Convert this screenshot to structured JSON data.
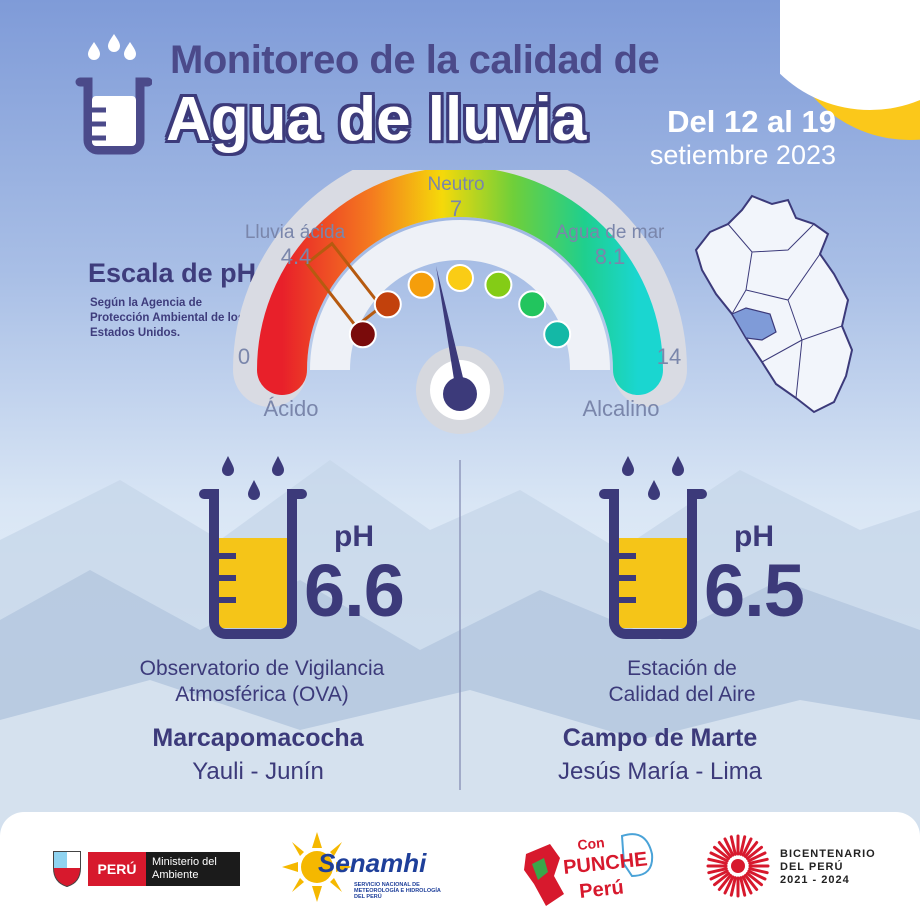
{
  "header": {
    "title_line1": "Monitoreo de la calidad de",
    "title_line2": "Agua de lluvia",
    "date_range": "Del 12 al 19",
    "date_month": "setiembre 2023"
  },
  "scale": {
    "title": "Escala de pH",
    "source": "Según la Agencia de Protección Ambiental de los Estados Unidos.",
    "min": "0",
    "max": "14",
    "acid_label": "Ácido",
    "alkaline_label": "Alcalino",
    "acid_rain_label": "Lluvia ácida",
    "acid_rain_value": "4.4",
    "neutral_label": "Neutro",
    "neutral_value": "7",
    "seawater_label": "Agua de mar",
    "seawater_value": "8.1",
    "needle_value": 7,
    "colors": [
      "#7a0b0b",
      "#c2410c",
      "#f59e0b",
      "#facc15",
      "#84cc16",
      "#22c55e",
      "#14b8a6"
    ]
  },
  "stations": [
    {
      "ph_label": "pH",
      "ph_value": "6.6",
      "station_line1": "Observatorio de Vigilancia",
      "station_line2": "Atmosférica (OVA)",
      "site": "Marcapomacocha",
      "region": "Yauli - Junín",
      "fill_level": 0.6
    },
    {
      "ph_label": "pH",
      "ph_value": "6.5",
      "station_line1": "Estación de",
      "station_line2": "Calidad del Aire",
      "site": "Campo de Marte",
      "region": "Jesús María - Lima",
      "fill_level": 0.6
    }
  ],
  "footer": {
    "peru": "PERÚ",
    "ministry": "Ministerio del Ambiente",
    "senamhi": "Senamhi",
    "senamhi_sub": "SERVICIO NACIONAL DE METEOROLOGÍA E HIDROLOGÍA DEL PERÚ",
    "punche_con": "Con",
    "punche": "PUNCHE",
    "punche_peru": "Perú",
    "bicent_line1": "BICENTENARIO",
    "bicent_line2": "DEL PERÚ",
    "bicent_line3": "2021 - 2024"
  },
  "colors": {
    "primary": "#3c3a7a",
    "accent_yellow": "#fbc81a",
    "liquid": "#f5c518"
  }
}
